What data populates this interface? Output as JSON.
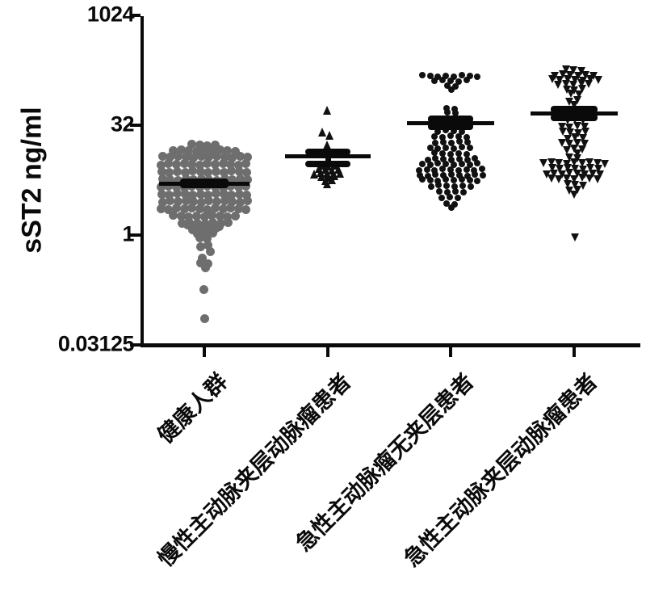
{
  "chart_data": {
    "type": "scatter",
    "subtype": "column-scatter-beeswarm",
    "title": "",
    "xlabel": "",
    "ylabel": "sST2 ng/ml",
    "y_scale": "log-base-32",
    "ylim": [
      0.03125,
      1024
    ],
    "grid": false,
    "legend": "none",
    "y_ticks": [
      {
        "value": 1024,
        "label": "1024"
      },
      {
        "value": 32,
        "label": "32"
      },
      {
        "value": 1,
        "label": "1"
      },
      {
        "value": 0.03125,
        "label": "0.03125"
      }
    ],
    "error_bar_style": "mean with upper/lower caps",
    "groups": [
      {
        "label": "健康人群",
        "marker": "circle",
        "color": "#6e6e6e",
        "mean": 5.1,
        "err_hi": 5.35,
        "err_lo": 4.88,
        "rows": [
          [
            17,
            4
          ],
          [
            14.5,
            9
          ],
          [
            11.7,
            12
          ],
          [
            9.3,
            12
          ],
          [
            7.3,
            12
          ],
          [
            5.8,
            12
          ],
          [
            4.6,
            12
          ],
          [
            3.6,
            12
          ],
          [
            2.9,
            12
          ],
          [
            2.3,
            12
          ],
          [
            1.8,
            9
          ],
          [
            1.45,
            7
          ],
          [
            1.35,
            5
          ],
          [
            1.2,
            4
          ],
          [
            1.05,
            3
          ],
          [
            0.89,
            2
          ],
          [
            0.7,
            2
          ],
          [
            0.59,
            1,
            6
          ],
          [
            0.5,
            1,
            -2
          ],
          [
            0.42,
            2
          ],
          [
            0.35,
            1
          ],
          [
            0.18,
            1
          ],
          [
            0.07,
            1
          ]
        ]
      },
      {
        "label": "慢性主动脉夹层动脉瘤患者",
        "marker": "triangle-up",
        "color": "#111111",
        "mean": 12,
        "err_hi": 13.9,
        "err_lo": 9.3,
        "rows": [
          [
            50,
            1
          ],
          [
            26,
            1,
            -7
          ],
          [
            23,
            1,
            1
          ],
          [
            17.6,
            1,
            0
          ],
          [
            9,
            3
          ],
          [
            7.9,
            4
          ],
          [
            7,
            5
          ],
          [
            6.3,
            3
          ],
          [
            5.7,
            2
          ],
          [
            5.1,
            1
          ]
        ]
      },
      {
        "label": "急性主动脉瘤无夹层患者",
        "marker": "circle",
        "color": "#111111",
        "mean": 34,
        "err_hi": 38.5,
        "err_lo": 30.5,
        "rows": [
          [
            150,
            8
          ],
          [
            130,
            5
          ],
          [
            110,
            2
          ],
          [
            102,
            1,
            2
          ],
          [
            55,
            2
          ],
          [
            47,
            2
          ],
          [
            26.5,
            4
          ],
          [
            22.3,
            5
          ],
          [
            18.6,
            5
          ],
          [
            15.5,
            6
          ],
          [
            13,
            5
          ],
          [
            10.9,
            7
          ],
          [
            9.4,
            8
          ],
          [
            7.8,
            9
          ],
          [
            6.6,
            9
          ],
          [
            5.7,
            8
          ],
          [
            4.7,
            6
          ],
          [
            3.9,
            4
          ],
          [
            3.3,
            3
          ],
          [
            2.7,
            2
          ],
          [
            2.3,
            1
          ]
        ]
      },
      {
        "label": "急性主动脉夹层动脉瘤患者",
        "marker": "triangle-down",
        "color": "#111111",
        "mean": 46,
        "err_hi": 53,
        "err_lo": 41,
        "rows": [
          [
            180,
            3
          ],
          [
            155,
            6
          ],
          [
            135,
            7
          ],
          [
            116,
            5
          ],
          [
            99,
            3
          ],
          [
            85,
            2
          ],
          [
            68,
            2
          ],
          [
            60,
            1
          ],
          [
            38,
            3
          ],
          [
            30.5,
            4
          ],
          [
            25.6,
            4
          ],
          [
            21.2,
            3
          ],
          [
            18,
            4
          ],
          [
            14.9,
            3
          ],
          [
            13,
            1,
            3
          ],
          [
            11.3,
            2
          ],
          [
            9.7,
            9
          ],
          [
            8.1,
            7
          ],
          [
            6.9,
            8
          ],
          [
            5.9,
            7
          ],
          [
            4.9,
            3
          ],
          [
            4.1,
            2
          ],
          [
            3.5,
            1
          ],
          [
            0.95,
            1
          ]
        ]
      }
    ]
  }
}
